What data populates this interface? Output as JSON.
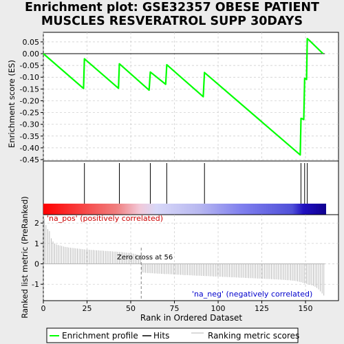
{
  "title_lines": [
    "Enrichment plot: GSE32357 OBESE PATIENT",
    "MUSCLES RESVERATROL SUPP 30DAYS"
  ],
  "colors": {
    "es_line": "#00ff00",
    "hits": "#000000",
    "grid": "#c8c8c8",
    "metric": "#b4b4b4",
    "pos_label": "#cc0000",
    "neg_label": "#0000cc",
    "zero_line": "#808080"
  },
  "legend": {
    "items": [
      {
        "label": "Enrichment profile",
        "icon": "green-line-icon",
        "color": "#00ff00"
      },
      {
        "label": "Hits",
        "icon": "black-line-icon",
        "color": "#000000"
      },
      {
        "label": "Ranking metric scores",
        "icon": "gray-line-icon",
        "color": "#b4b4b4"
      }
    ]
  },
  "chart_data": [
    {
      "type": "line",
      "panel": "enrichment",
      "ylabel": "Enrichment score (ES)",
      "xlim": [
        0,
        170
      ],
      "ylim": [
        -0.45,
        0.09
      ],
      "yticks": [
        0.05,
        0.0,
        -0.05,
        -0.1,
        -0.15,
        -0.2,
        -0.25,
        -0.3,
        -0.35,
        -0.4,
        -0.45
      ],
      "ytick_labels": [
        "0.05",
        "0.00",
        "-0.05",
        "-0.10",
        "-0.15",
        "-0.20",
        "-0.25",
        "-0.30",
        "-0.35",
        "-0.40",
        "-0.45"
      ],
      "grid": true,
      "series": [
        {
          "name": "Enrichment profile",
          "x": [
            0,
            23,
            23.5,
            43,
            43.5,
            60.5,
            61.2,
            70,
            70.6,
            91.5,
            92.2,
            147,
            147.4,
            148,
            149,
            149.5,
            150,
            150.6,
            151,
            152,
            160
          ],
          "y": [
            0.0,
            -0.148,
            -0.022,
            -0.147,
            -0.043,
            -0.155,
            -0.078,
            -0.13,
            -0.047,
            -0.183,
            -0.08,
            -0.43,
            -0.275,
            -0.276,
            -0.28,
            -0.105,
            -0.107,
            -0.11,
            0.064,
            0.058,
            0.0
          ]
        }
      ]
    },
    {
      "type": "hits",
      "panel": "hits",
      "hits": [
        23.5,
        43.5,
        61.2,
        70.6,
        92.2,
        147.4,
        149.5,
        151
      ]
    },
    {
      "type": "bar",
      "panel": "ranking",
      "ylabel": "Ranked list metric (PreRanked)",
      "xlabel": "Rank in Ordered Dataset",
      "xlim": [
        0,
        170
      ],
      "ylim": [
        -1.75,
        2.35
      ],
      "xticks": [
        0,
        25,
        50,
        75,
        100,
        125,
        150
      ],
      "yticks": [
        2,
        1,
        0,
        -1
      ],
      "grid": true,
      "zero_cross": 56,
      "annotations": {
        "zero_cross": "Zero cross at 56",
        "pos": "'na_pos' (positively correlated)",
        "neg": "'na_neg' (negatively correlated)"
      },
      "values": [
        2.2,
        1.9,
        1.7,
        1.6,
        1.25,
        1.1,
        1.0,
        0.95,
        0.92,
        0.9,
        0.88,
        0.85,
        0.83,
        0.82,
        0.8,
        0.79,
        0.78,
        0.77,
        0.76,
        0.75,
        0.74,
        0.73,
        0.72,
        0.71,
        0.7,
        0.7,
        0.69,
        0.68,
        0.68,
        0.67,
        0.66,
        0.66,
        0.65,
        0.65,
        0.64,
        0.63,
        0.63,
        0.62,
        0.62,
        0.61,
        0.6,
        0.6,
        0.59,
        0.58,
        0.58,
        0.57,
        0.56,
        0.55,
        0.54,
        0.53,
        0.52,
        0.5,
        0.48,
        0.46,
        0.43,
        0.4,
        -0.42,
        -0.43,
        -0.44,
        -0.45,
        -0.45,
        -0.46,
        -0.46,
        -0.47,
        -0.47,
        -0.48,
        -0.48,
        -0.49,
        -0.49,
        -0.5,
        -0.5,
        -0.5,
        -0.51,
        -0.51,
        -0.52,
        -0.52,
        -0.53,
        -0.53,
        -0.54,
        -0.54,
        -0.55,
        -0.55,
        -0.55,
        -0.56,
        -0.56,
        -0.57,
        -0.57,
        -0.58,
        -0.58,
        -0.58,
        -0.59,
        -0.59,
        -0.6,
        -0.6,
        -0.6,
        -0.61,
        -0.61,
        -0.62,
        -0.62,
        -0.62,
        -0.63,
        -0.63,
        -0.64,
        -0.64,
        -0.64,
        -0.65,
        -0.65,
        -0.66,
        -0.66,
        -0.66,
        -0.67,
        -0.67,
        -0.68,
        -0.68,
        -0.68,
        -0.69,
        -0.69,
        -0.7,
        -0.7,
        -0.7,
        -0.71,
        -0.71,
        -0.72,
        -0.72,
        -0.72,
        -0.73,
        -0.73,
        -0.74,
        -0.74,
        -0.74,
        -0.75,
        -0.75,
        -0.76,
        -0.76,
        -0.77,
        -0.77,
        -0.78,
        -0.78,
        -0.79,
        -0.8,
        -0.8,
        -0.81,
        -0.82,
        -0.83,
        -0.84,
        -0.86,
        -0.88,
        -0.9,
        -0.93,
        -0.96,
        -0.98,
        -1.0,
        -1.02,
        -1.05,
        -1.08,
        -1.12,
        -1.18,
        -1.25,
        -1.35,
        -1.45,
        -1.55
      ]
    }
  ]
}
